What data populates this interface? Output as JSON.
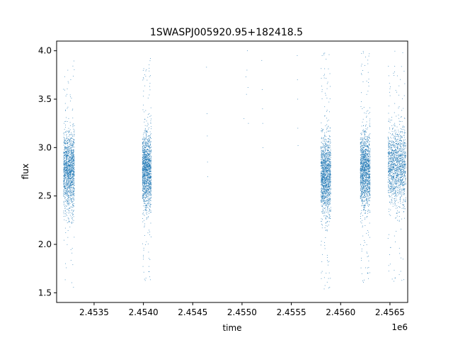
{
  "chart_data": {
    "type": "scatter",
    "title": "1SWASPJ005920.95+182418.5",
    "xlabel": "time",
    "ylabel": "flux",
    "x_offset_label": "1e6",
    "xlim": [
      2453120,
      2456680
    ],
    "ylim": [
      1.4,
      4.1
    ],
    "x_ticks": [
      2453500,
      2454000,
      2454500,
      2455000,
      2455500,
      2456000,
      2456500
    ],
    "x_tick_labels": [
      "2.4535",
      "2.4540",
      "2.4545",
      "2.4550",
      "2.4555",
      "2.4560",
      "2.4565"
    ],
    "y_ticks": [
      1.5,
      2.0,
      2.5,
      3.0,
      3.5,
      4.0
    ],
    "y_tick_labels": [
      "1.5",
      "2.0",
      "2.5",
      "3.0",
      "3.5",
      "4.0"
    ],
    "grid": false,
    "point_color": "#1f77b4",
    "dense_clusters": [
      {
        "x_range": [
          2453190,
          2453300
        ],
        "y_mean": 2.75,
        "y_range": [
          1.55,
          3.9
        ]
      },
      {
        "x_range": [
          2453990,
          2454080
        ],
        "y_mean": 2.75,
        "y_range": [
          1.6,
          3.95
        ]
      },
      {
        "x_range": [
          2455800,
          2455900
        ],
        "y_mean": 2.7,
        "y_range": [
          1.52,
          3.98
        ]
      },
      {
        "x_range": [
          2456200,
          2456300
        ],
        "y_mean": 2.75,
        "y_range": [
          1.58,
          4.0
        ]
      },
      {
        "x_range": [
          2456480,
          2456660
        ],
        "y_mean": 2.8,
        "y_range": [
          1.6,
          4.0
        ]
      }
    ],
    "sparse_points": [
      {
        "x": 2454640,
        "y": 3.83
      },
      {
        "x": 2454645,
        "y": 3.35
      },
      {
        "x": 2454648,
        "y": 3.12
      },
      {
        "x": 2454650,
        "y": 2.85
      },
      {
        "x": 2454652,
        "y": 2.7
      },
      {
        "x": 2455020,
        "y": 3.3
      },
      {
        "x": 2455040,
        "y": 3.73
      },
      {
        "x": 2455050,
        "y": 3.8
      },
      {
        "x": 2455045,
        "y": 3.55
      },
      {
        "x": 2455060,
        "y": 3.62
      },
      {
        "x": 2455065,
        "y": 3.25
      },
      {
        "x": 2455055,
        "y": 4.0
      },
      {
        "x": 2455200,
        "y": 3.9
      },
      {
        "x": 2455205,
        "y": 3.6
      },
      {
        "x": 2455208,
        "y": 3.4
      },
      {
        "x": 2455210,
        "y": 3.25
      },
      {
        "x": 2455212,
        "y": 3.0
      },
      {
        "x": 2455560,
        "y": 3.95
      },
      {
        "x": 2455562,
        "y": 3.7
      },
      {
        "x": 2455565,
        "y": 3.5
      },
      {
        "x": 2455566,
        "y": 3.2
      },
      {
        "x": 2455568,
        "y": 3.02
      }
    ]
  }
}
